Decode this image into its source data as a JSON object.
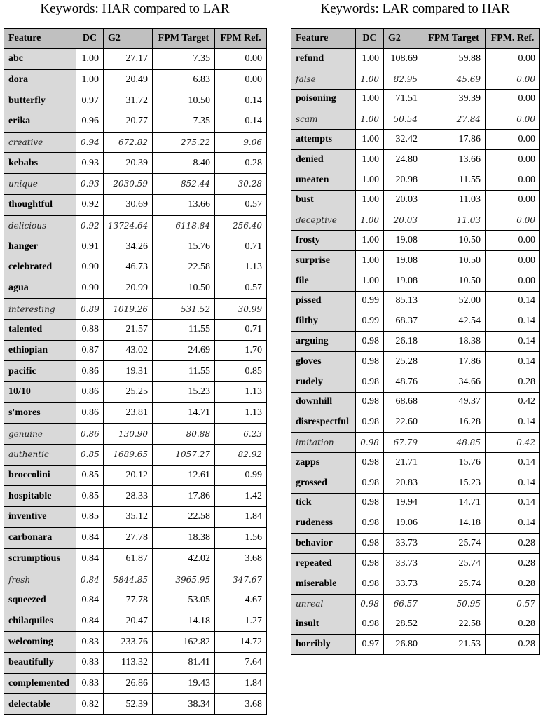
{
  "left": {
    "title": "Keywords: HAR compared to LAR",
    "headers": [
      "Feature",
      "DC",
      "G2",
      "FPM Target",
      "FPM Ref."
    ],
    "rows": [
      {
        "f": "abc",
        "dc": "1.00",
        "g2": "27.17",
        "t": "7.35",
        "r": "0.00",
        "italic": false
      },
      {
        "f": "dora",
        "dc": "1.00",
        "g2": "20.49",
        "t": "6.83",
        "r": "0.00",
        "italic": false
      },
      {
        "f": "butterfly",
        "dc": "0.97",
        "g2": "31.72",
        "t": "10.50",
        "r": "0.14",
        "italic": false
      },
      {
        "f": "erika",
        "dc": "0.96",
        "g2": "20.77",
        "t": "7.35",
        "r": "0.14",
        "italic": false
      },
      {
        "f": "creative",
        "dc": "0.94",
        "g2": "672.82",
        "t": "275.22",
        "r": "9.06",
        "italic": true
      },
      {
        "f": "kebabs",
        "dc": "0.93",
        "g2": "20.39",
        "t": "8.40",
        "r": "0.28",
        "italic": false
      },
      {
        "f": "unique",
        "dc": "0.93",
        "g2": "2030.59",
        "t": "852.44",
        "r": "30.28",
        "italic": true
      },
      {
        "f": "thoughtful",
        "dc": "0.92",
        "g2": "30.69",
        "t": "13.66",
        "r": "0.57",
        "italic": false
      },
      {
        "f": "delicious",
        "dc": "0.92",
        "g2": "13724.64",
        "t": "6118.84",
        "r": "256.40",
        "italic": true
      },
      {
        "f": "hanger",
        "dc": "0.91",
        "g2": "34.26",
        "t": "15.76",
        "r": "0.71",
        "italic": false
      },
      {
        "f": "celebrated",
        "dc": "0.90",
        "g2": "46.73",
        "t": "22.58",
        "r": "1.13",
        "italic": false
      },
      {
        "f": "agua",
        "dc": "0.90",
        "g2": "20.99",
        "t": "10.50",
        "r": "0.57",
        "italic": false
      },
      {
        "f": "interesting",
        "dc": "0.89",
        "g2": "1019.26",
        "t": "531.52",
        "r": "30.99",
        "italic": true
      },
      {
        "f": "talented",
        "dc": "0.88",
        "g2": "21.57",
        "t": "11.55",
        "r": "0.71",
        "italic": false
      },
      {
        "f": "ethiopian",
        "dc": "0.87",
        "g2": "43.02",
        "t": "24.69",
        "r": "1.70",
        "italic": false
      },
      {
        "f": "pacific",
        "dc": "0.86",
        "g2": "19.31",
        "t": "11.55",
        "r": "0.85",
        "italic": false
      },
      {
        "f": "10/10",
        "dc": "0.86",
        "g2": "25.25",
        "t": "15.23",
        "r": "1.13",
        "italic": false
      },
      {
        "f": "s'mores",
        "dc": "0.86",
        "g2": "23.81",
        "t": "14.71",
        "r": "1.13",
        "italic": false
      },
      {
        "f": "genuine",
        "dc": "0.86",
        "g2": "130.90",
        "t": "80.88",
        "r": "6.23",
        "italic": true
      },
      {
        "f": "authentic",
        "dc": "0.85",
        "g2": "1689.65",
        "t": "1057.27",
        "r": "82.92",
        "italic": true
      },
      {
        "f": "broccolini",
        "dc": "0.85",
        "g2": "20.12",
        "t": "12.61",
        "r": "0.99",
        "italic": false
      },
      {
        "f": "hospitable",
        "dc": "0.85",
        "g2": "28.33",
        "t": "17.86",
        "r": "1.42",
        "italic": false
      },
      {
        "f": "inventive",
        "dc": "0.85",
        "g2": "35.12",
        "t": "22.58",
        "r": "1.84",
        "italic": false
      },
      {
        "f": "carbonara",
        "dc": "0.84",
        "g2": "27.78",
        "t": "18.38",
        "r": "1.56",
        "italic": false
      },
      {
        "f": "scrumptious",
        "dc": "0.84",
        "g2": "61.87",
        "t": "42.02",
        "r": "3.68",
        "italic": false
      },
      {
        "f": "fresh",
        "dc": "0.84",
        "g2": "5844.85",
        "t": "3965.95",
        "r": "347.67",
        "italic": true
      },
      {
        "f": "squeezed",
        "dc": "0.84",
        "g2": "77.78",
        "t": "53.05",
        "r": "4.67",
        "italic": false
      },
      {
        "f": "chilaquiles",
        "dc": "0.84",
        "g2": "20.47",
        "t": "14.18",
        "r": "1.27",
        "italic": false
      },
      {
        "f": "welcoming",
        "dc": "0.83",
        "g2": "233.76",
        "t": "162.82",
        "r": "14.72",
        "italic": false
      },
      {
        "f": "beautifully",
        "dc": "0.83",
        "g2": "113.32",
        "t": "81.41",
        "r": "7.64",
        "italic": false
      },
      {
        "f": "complemented",
        "dc": "0.83",
        "g2": "26.86",
        "t": "19.43",
        "r": "1.84",
        "italic": false
      },
      {
        "f": "delectable",
        "dc": "0.82",
        "g2": "52.39",
        "t": "38.34",
        "r": "3.68",
        "italic": false
      }
    ]
  },
  "right": {
    "title": "Keywords: LAR compared to HAR",
    "headers": [
      "Feature",
      "DC",
      "G2",
      "FPM Target",
      "FPM. Ref."
    ],
    "rows": [
      {
        "f": "refund",
        "dc": "1.00",
        "g2": "108.69",
        "t": "59.88",
        "r": "0.00",
        "italic": false
      },
      {
        "f": "false",
        "dc": "1.00",
        "g2": "82.95",
        "t": "45.69",
        "r": "0.00",
        "italic": true
      },
      {
        "f": "poisoning",
        "dc": "1.00",
        "g2": "71.51",
        "t": "39.39",
        "r": "0.00",
        "italic": false
      },
      {
        "f": "scam",
        "dc": "1.00",
        "g2": "50.54",
        "t": "27.84",
        "r": "0.00",
        "italic": true
      },
      {
        "f": "attempts",
        "dc": "1.00",
        "g2": "32.42",
        "t": "17.86",
        "r": "0.00",
        "italic": false
      },
      {
        "f": "denied",
        "dc": "1.00",
        "g2": "24.80",
        "t": "13.66",
        "r": "0.00",
        "italic": false
      },
      {
        "f": "uneaten",
        "dc": "1.00",
        "g2": "20.98",
        "t": "11.55",
        "r": "0.00",
        "italic": false
      },
      {
        "f": "bust",
        "dc": "1.00",
        "g2": "20.03",
        "t": "11.03",
        "r": "0.00",
        "italic": false
      },
      {
        "f": "deceptive",
        "dc": "1.00",
        "g2": "20.03",
        "t": "11.03",
        "r": "0.00",
        "italic": true
      },
      {
        "f": "frosty",
        "dc": "1.00",
        "g2": "19.08",
        "t": "10.50",
        "r": "0.00",
        "italic": false
      },
      {
        "f": "surprise",
        "dc": "1.00",
        "g2": "19.08",
        "t": "10.50",
        "r": "0.00",
        "italic": false
      },
      {
        "f": "file",
        "dc": "1.00",
        "g2": "19.08",
        "t": "10.50",
        "r": "0.00",
        "italic": false
      },
      {
        "f": "pissed",
        "dc": "0.99",
        "g2": "85.13",
        "t": "52.00",
        "r": "0.14",
        "italic": false
      },
      {
        "f": "filthy",
        "dc": "0.99",
        "g2": "68.37",
        "t": "42.54",
        "r": "0.14",
        "italic": false
      },
      {
        "f": "arguing",
        "dc": "0.98",
        "g2": "26.18",
        "t": "18.38",
        "r": "0.14",
        "italic": false
      },
      {
        "f": "gloves",
        "dc": "0.98",
        "g2": "25.28",
        "t": "17.86",
        "r": "0.14",
        "italic": false
      },
      {
        "f": "rudely",
        "dc": "0.98",
        "g2": "48.76",
        "t": "34.66",
        "r": "0.28",
        "italic": false
      },
      {
        "f": "downhill",
        "dc": "0.98",
        "g2": "68.68",
        "t": "49.37",
        "r": "0.42",
        "italic": false
      },
      {
        "f": "disrespectful",
        "dc": "0.98",
        "g2": "22.60",
        "t": "16.28",
        "r": "0.14",
        "italic": false
      },
      {
        "f": "imitation",
        "dc": "0.98",
        "g2": "67.79",
        "t": "48.85",
        "r": "0.42",
        "italic": true
      },
      {
        "f": "zapps",
        "dc": "0.98",
        "g2": "21.71",
        "t": "15.76",
        "r": "0.14",
        "italic": false
      },
      {
        "f": "grossed",
        "dc": "0.98",
        "g2": "20.83",
        "t": "15.23",
        "r": "0.14",
        "italic": false
      },
      {
        "f": "tick",
        "dc": "0.98",
        "g2": "19.94",
        "t": "14.71",
        "r": "0.14",
        "italic": false
      },
      {
        "f": "rudeness",
        "dc": "0.98",
        "g2": "19.06",
        "t": "14.18",
        "r": "0.14",
        "italic": false
      },
      {
        "f": "behavior",
        "dc": "0.98",
        "g2": "33.73",
        "t": "25.74",
        "r": "0.28",
        "italic": false
      },
      {
        "f": "repeated",
        "dc": "0.98",
        "g2": "33.73",
        "t": "25.74",
        "r": "0.28",
        "italic": false
      },
      {
        "f": "miserable",
        "dc": "0.98",
        "g2": "33.73",
        "t": "25.74",
        "r": "0.28",
        "italic": false
      },
      {
        "f": "unreal",
        "dc": "0.98",
        "g2": "66.57",
        "t": "50.95",
        "r": "0.57",
        "italic": true
      },
      {
        "f": "insult",
        "dc": "0.98",
        "g2": "28.52",
        "t": "22.58",
        "r": "0.28",
        "italic": false
      },
      {
        "f": "horribly",
        "dc": "0.97",
        "g2": "26.80",
        "t": "21.53",
        "r": "0.28",
        "italic": false
      }
    ]
  }
}
